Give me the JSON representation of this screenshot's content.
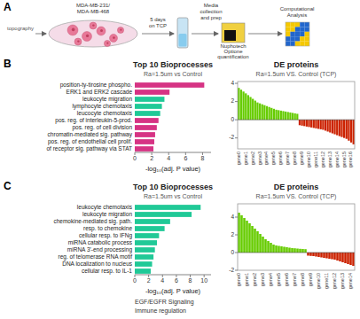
{
  "chart_data": [
    {
      "type": "schematic",
      "annotations": [
        "A",
        "topography",
        "MDA-MB-231/",
        "MDA-MB-468",
        "5 days",
        "on TCP",
        "Media",
        "collection",
        "and prep",
        "Nuphotech",
        "Optione",
        "quantification",
        "Computational",
        "Analysis"
      ]
    },
    {
      "type": "bar",
      "orientation": "horizontal",
      "title": "Top 10 Bioprocesses",
      "subtitle": "Ra=1.5um vs Control",
      "annotations": [
        "B"
      ],
      "categories": [
        "position-ty-tirosine phospho.",
        "ERK1 and ERK2 cascade",
        "leukocyte migration",
        "lymphocyte chemotaxis",
        "leucocyte chemotaxis",
        "pos. reg. of interleukin-5-prod.",
        "pos. reg. of cell division",
        "chromatin-mediated sig. pathway",
        "pos. reg. of endothelial cell prolif.",
        "of receptor sig. pathway via STAT"
      ],
      "values": [
        8.2,
        4.1,
        3.5,
        3.2,
        3.0,
        2.8,
        2.6,
        2.4,
        2.3,
        2.2
      ],
      "colors": [
        "#d63384",
        "#d63384",
        "#20c997",
        "#20c997",
        "#20c997",
        "#d63384",
        "#d63384",
        "#d63384",
        "#d63384",
        "#d63384"
      ],
      "xlabel": "-log₁₀(adj. P value)",
      "xlim": [
        0,
        9
      ],
      "xticks": [
        0,
        2,
        4,
        6,
        8
      ]
    },
    {
      "type": "bar",
      "title": "DE proteins",
      "subtitle": "Ra=1.5um VS. Control (TCP)",
      "categories": [
        "gene0",
        null,
        null,
        "gene1",
        null,
        null,
        "gene2",
        null,
        null,
        "gene3",
        null,
        null,
        "gene4",
        null,
        null,
        "gene5",
        null,
        null,
        "gene6",
        null,
        null,
        "gene7",
        null,
        null,
        "gene8",
        null,
        null,
        "gene9",
        null,
        null,
        "gene10",
        null,
        null,
        "gene11",
        null,
        null,
        "gene12",
        null,
        null,
        "gene13",
        null,
        null,
        "gene14",
        null,
        null,
        "gene15",
        null,
        null,
        "gene16",
        null
      ],
      "values": [
        3.5,
        3.3,
        3.1,
        2.9,
        2.7,
        2.5,
        2.3,
        2.1,
        1.9,
        1.8,
        1.7,
        1.6,
        1.5,
        1.4,
        1.3,
        1.2,
        1.1,
        1.05,
        1.0,
        0.95,
        0.9,
        0.85,
        0.8,
        0.75,
        0.7,
        0.65,
        -0.6,
        -0.65,
        -0.7,
        -0.75,
        -0.8,
        -0.85,
        -0.9,
        -0.95,
        -1.0,
        -1.05,
        -1.1,
        -1.2,
        -1.3,
        -1.4,
        -1.5,
        -1.6,
        -1.7,
        -1.8,
        -1.9,
        -2.0,
        -2.1,
        -2.3,
        -2.5,
        -2.7
      ],
      "colors": [
        "#66cc00",
        "#66cc00",
        "#66cc00",
        "#66cc00",
        "#66cc00",
        "#66cc00",
        "#66cc00",
        "#66cc00",
        "#66cc00",
        "#66cc00",
        "#66cc00",
        "#66cc00",
        "#66cc00",
        "#66cc00",
        "#66cc00",
        "#66cc00",
        "#66cc00",
        "#66cc00",
        "#66cc00",
        "#66cc00",
        "#66cc00",
        "#66cc00",
        "#66cc00",
        "#66cc00",
        "#66cc00",
        "#66cc00",
        "#cc2200",
        "#cc2200",
        "#cc2200",
        "#cc2200",
        "#cc2200",
        "#cc2200",
        "#cc2200",
        "#cc2200",
        "#cc2200",
        "#cc2200",
        "#cc2200",
        "#cc2200",
        "#cc2200",
        "#cc2200",
        "#cc2200",
        "#cc2200",
        "#cc2200",
        "#cc2200",
        "#cc2200",
        "#cc2200",
        "#cc2200",
        "#cc2200",
        "#cc2200",
        "#cc2200"
      ],
      "ylim": [
        -3.2,
        4.2
      ],
      "yticks": [
        -2,
        0,
        2,
        4
      ]
    },
    {
      "type": "bar",
      "orientation": "horizontal",
      "title": "Top 10 Bioprocesses",
      "subtitle": "Ra=1.5um vs Control",
      "annotations": [
        "C",
        "EGF/EGFR Signaling",
        "Immune regulation"
      ],
      "categories": [
        "leukocyte chemotaxis",
        "leukocyte migration",
        "chemokine-mediated sig. path.",
        "resp. to chemokine",
        "cellular resp. to IFNg",
        "miRNA catabolic process",
        "miRNA 3'-end processing",
        "reg. of telomerase RNA motif",
        "DNA localization to nucleus",
        "cellular resp. to IL-1"
      ],
      "values": [
        9.5,
        8.2,
        5.1,
        4.3,
        3.5,
        3.2,
        2.9,
        2.7,
        2.5,
        2.3
      ],
      "colors": [
        "#20c997",
        "#20c997",
        "#20c997",
        "#20c997",
        "#20c997",
        "#20c997",
        "#20c997",
        "#20c997",
        "#20c997",
        "#20c997"
      ],
      "xlabel": "-log₁₀(adj. P value)",
      "xlim": [
        0,
        11
      ],
      "xticks": [
        0,
        2,
        4,
        6,
        8,
        10
      ]
    },
    {
      "type": "bar",
      "title": "DE proteins",
      "subtitle": "Ra=1.5um VS. Control (TCP)",
      "categories": [
        "gene0",
        null,
        null,
        "gene1",
        null,
        null,
        "gene2",
        null,
        null,
        "gene3",
        null,
        null,
        "gene4",
        null,
        null,
        "gene5",
        null,
        null,
        "gene6",
        null,
        null,
        "gene7",
        null,
        null,
        "gene8",
        null,
        null,
        "gene9",
        null,
        null,
        "gene10",
        null,
        null,
        "gene11",
        null,
        null,
        "gene12",
        null,
        null,
        "gene13",
        null,
        null,
        "gene14",
        null
      ],
      "values": [
        4.5,
        4.2,
        3.9,
        3.6,
        3.3,
        3.0,
        2.7,
        2.4,
        2.1,
        1.8,
        1.5,
        1.3,
        1.1,
        0.9,
        0.8,
        0.75,
        0.7,
        0.65,
        0.6,
        0.55,
        0.5,
        0.48,
        0.45,
        0.42,
        0.4,
        0.38,
        -0.35,
        -0.38,
        -0.4,
        -0.45,
        -0.5,
        -0.55,
        -0.6,
        -0.65,
        -0.7,
        -0.75,
        -0.8,
        -0.9,
        -1.0,
        -1.1,
        -1.2,
        -1.3,
        -1.4,
        -1.5
      ],
      "colors": [
        "#66cc00",
        "#66cc00",
        "#66cc00",
        "#66cc00",
        "#66cc00",
        "#66cc00",
        "#66cc00",
        "#66cc00",
        "#66cc00",
        "#66cc00",
        "#66cc00",
        "#66cc00",
        "#66cc00",
        "#66cc00",
        "#66cc00",
        "#66cc00",
        "#66cc00",
        "#66cc00",
        "#66cc00",
        "#66cc00",
        "#66cc00",
        "#66cc00",
        "#66cc00",
        "#66cc00",
        "#66cc00",
        "#66cc00",
        "#cc2200",
        "#cc2200",
        "#cc2200",
        "#cc2200",
        "#cc2200",
        "#cc2200",
        "#cc2200",
        "#cc2200",
        "#cc2200",
        "#cc2200",
        "#cc2200",
        "#cc2200",
        "#cc2200",
        "#cc2200",
        "#cc2200",
        "#cc2200",
        "#cc2200",
        "#cc2200"
      ],
      "ylim": [
        -2.0,
        5.5
      ],
      "yticks": [
        -2,
        0,
        2,
        4
      ]
    }
  ]
}
